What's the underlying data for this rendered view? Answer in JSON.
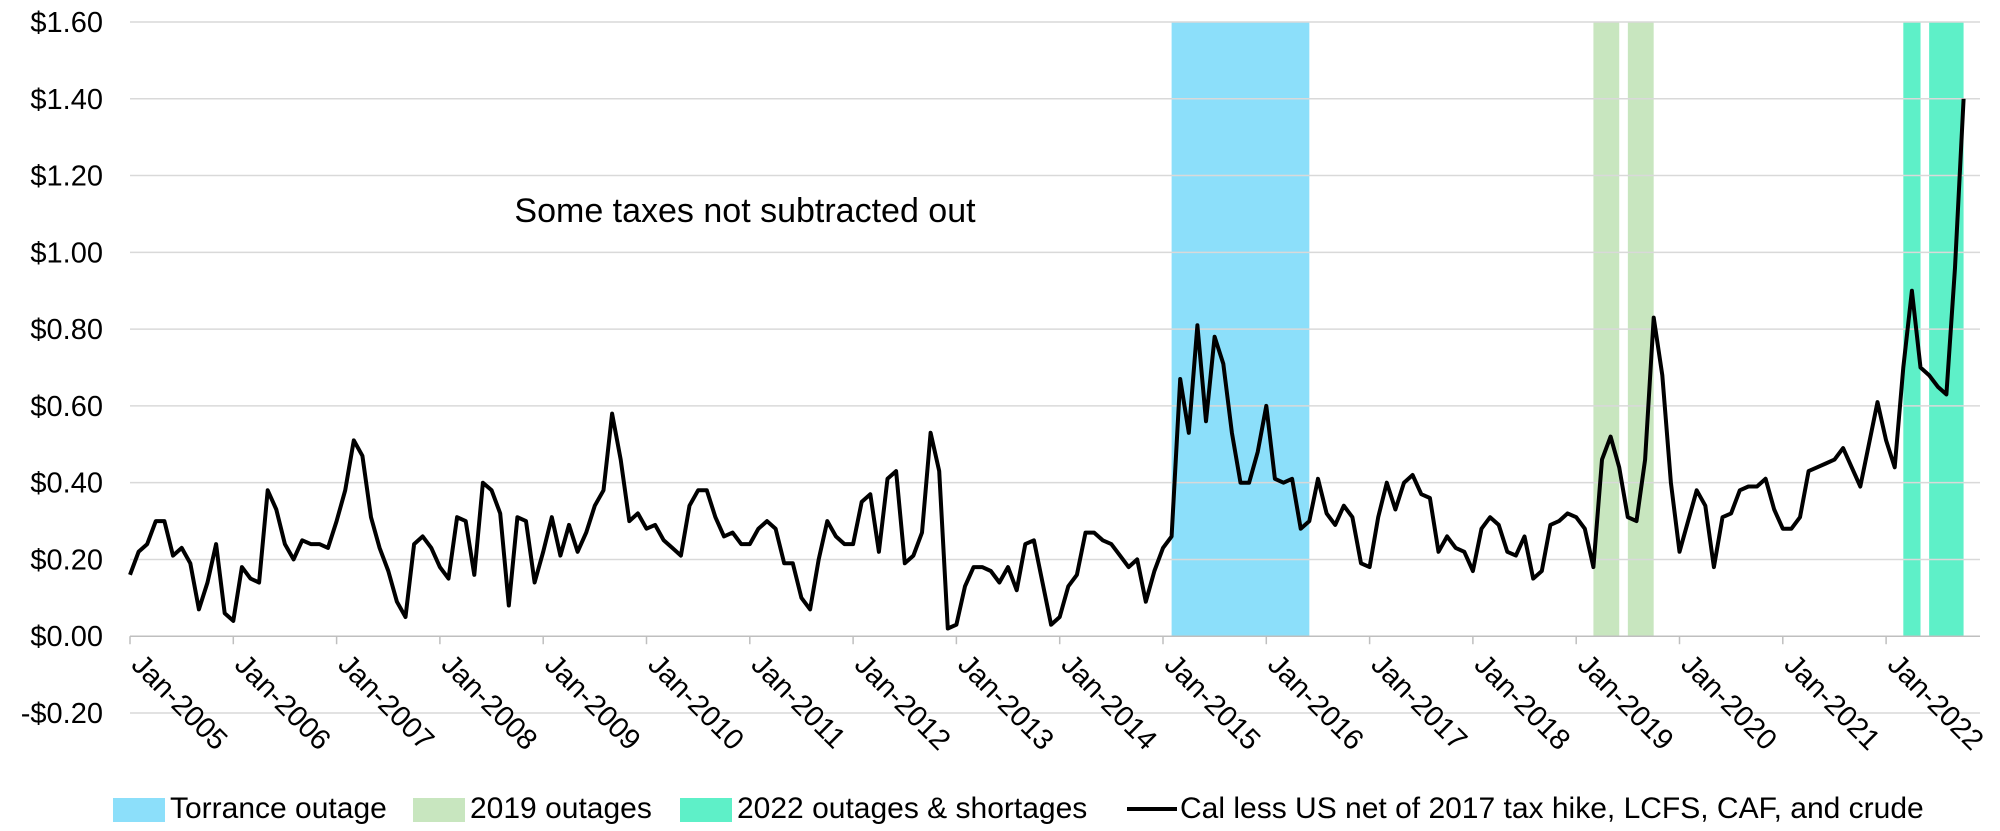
{
  "chart_data": {
    "type": "line",
    "title": "",
    "xlabel": "",
    "ylabel": "",
    "ylim": [
      -0.2,
      1.6
    ],
    "yticks": [
      {
        "value": 1.6,
        "label": "$1.60"
      },
      {
        "value": 1.4,
        "label": "$1.40"
      },
      {
        "value": 1.2,
        "label": "$1.20"
      },
      {
        "value": 1.0,
        "label": "$1.00"
      },
      {
        "value": 0.8,
        "label": "$0.80"
      },
      {
        "value": 0.6,
        "label": "$0.60"
      },
      {
        "value": 0.4,
        "label": "$0.40"
      },
      {
        "value": 0.2,
        "label": "$0.20"
      },
      {
        "value": 0.0,
        "label": "$0.00"
      },
      {
        "value": -0.2,
        "label": "-$0.20"
      }
    ],
    "xticks": [
      "Jan-2005",
      "Jan-2006",
      "Jan-2007",
      "Jan-2008",
      "Jan-2009",
      "Jan-2010",
      "Jan-2011",
      "Jan-2012",
      "Jan-2013",
      "Jan-2014",
      "Jan-2015",
      "Jan-2016",
      "Jan-2017",
      "Jan-2018",
      "Jan-2019",
      "Jan-2020",
      "Jan-2021",
      "Jan-2022"
    ],
    "grid": true,
    "legend_position": "bottom",
    "annotation": "Some taxes not subtracted out",
    "shaded_periods": [
      {
        "name": "Torrance outage",
        "color": "#8cdffa",
        "start": "2015-02",
        "end": "2016-06"
      },
      {
        "name": "2019 outages",
        "color": "#c8e6bf",
        "start": "2019-03",
        "end": "2019-06"
      },
      {
        "name": "2019 outages",
        "color": "#c8e6bf",
        "start": "2019-07",
        "end": "2019-10"
      },
      {
        "name": "2022 outages & shortages",
        "color": "#5ef0c8",
        "start": "2022-03",
        "end": "2022-05"
      },
      {
        "name": "2022 outages & shortages",
        "color": "#5ef0c8",
        "start": "2022-06",
        "end": "2022-10"
      }
    ],
    "legend": [
      {
        "label": "Torrance outage",
        "swatch": "box",
        "color": "#8cdffa"
      },
      {
        "label": "2019 outages",
        "swatch": "box",
        "color": "#c8e6bf"
      },
      {
        "label": "2022 outages & shortages",
        "swatch": "box",
        "color": "#5ef0c8"
      },
      {
        "label": "Cal less US net of 2017 tax hike, LCFS, CAF, and crude",
        "swatch": "line",
        "color": "#000000"
      }
    ],
    "series": [
      {
        "name": "Cal less US net of 2017 tax hike, LCFS, CAF, and crude",
        "color": "#000000",
        "start": "2005-01",
        "frequency": "monthly",
        "values": [
          0.16,
          0.22,
          0.24,
          0.3,
          0.3,
          0.21,
          0.23,
          0.19,
          0.07,
          0.14,
          0.24,
          0.06,
          0.04,
          0.18,
          0.15,
          0.14,
          0.38,
          0.33,
          0.24,
          0.2,
          0.25,
          0.24,
          0.24,
          0.23,
          0.3,
          0.38,
          0.51,
          0.47,
          0.31,
          0.23,
          0.17,
          0.09,
          0.05,
          0.24,
          0.26,
          0.23,
          0.18,
          0.15,
          0.31,
          0.3,
          0.16,
          0.4,
          0.38,
          0.32,
          0.08,
          0.31,
          0.3,
          0.14,
          0.22,
          0.31,
          0.21,
          0.29,
          0.22,
          0.27,
          0.34,
          0.38,
          0.58,
          0.46,
          0.3,
          0.32,
          0.28,
          0.29,
          0.25,
          0.23,
          0.21,
          0.34,
          0.38,
          0.38,
          0.31,
          0.26,
          0.27,
          0.24,
          0.24,
          0.28,
          0.3,
          0.28,
          0.19,
          0.19,
          0.1,
          0.07,
          0.2,
          0.3,
          0.26,
          0.24,
          0.24,
          0.35,
          0.37,
          0.22,
          0.41,
          0.43,
          0.19,
          0.21,
          0.27,
          0.53,
          0.43,
          0.02,
          0.03,
          0.13,
          0.18,
          0.18,
          0.17,
          0.14,
          0.18,
          0.12,
          0.24,
          0.25,
          0.14,
          0.03,
          0.05,
          0.13,
          0.16,
          0.27,
          0.27,
          0.25,
          0.24,
          0.21,
          0.18,
          0.2,
          0.09,
          0.17,
          0.23,
          0.26,
          0.67,
          0.53,
          0.81,
          0.56,
          0.78,
          0.71,
          0.53,
          0.4,
          0.4,
          0.48,
          0.6,
          0.41,
          0.4,
          0.41,
          0.28,
          0.3,
          0.41,
          0.32,
          0.29,
          0.34,
          0.31,
          0.19,
          0.18,
          0.31,
          0.4,
          0.33,
          0.4,
          0.42,
          0.37,
          0.36,
          0.22,
          0.26,
          0.23,
          0.22,
          0.17,
          0.28,
          0.31,
          0.29,
          0.22,
          0.21,
          0.26,
          0.15,
          0.17,
          0.29,
          0.3,
          0.32,
          0.31,
          0.28,
          0.18,
          0.46,
          0.52,
          0.44,
          0.31,
          0.3,
          0.46,
          0.83,
          0.68,
          0.4,
          0.22,
          0.3,
          0.38,
          0.34,
          0.18,
          0.31,
          0.32,
          0.38,
          0.39,
          0.39,
          0.41,
          0.33,
          0.28,
          0.28,
          0.31,
          0.43,
          0.44,
          0.45,
          0.46,
          0.49,
          0.44,
          0.39,
          0.5,
          0.61,
          0.51,
          0.44,
          0.7,
          0.9,
          0.7,
          0.68,
          0.65,
          0.63,
          0.96,
          1.4
        ]
      }
    ]
  }
}
